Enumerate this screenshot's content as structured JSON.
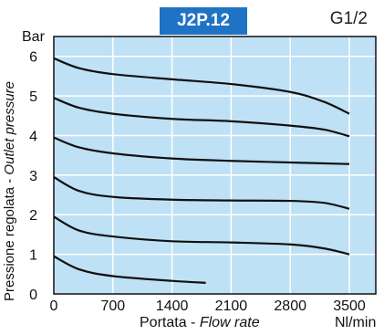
{
  "header": {
    "model_badge": "J2P.12",
    "port_size": "G1/2"
  },
  "colors": {
    "plot_background": "#bfe1f5",
    "gridline": "#ffffff",
    "curve": "#111111",
    "badge": "#1e73c4"
  },
  "chart_data": {
    "type": "line",
    "title": "J2P.12",
    "subtitle": "G1/2",
    "xlabel_main": "Portata - ",
    "xlabel_italic": "Flow rate",
    "xunit": "Nl/min",
    "ylabel_main": "Pressione regolata - ",
    "ylabel_italic": "Outlet pressure",
    "yunit": "Bar",
    "xlim": [
      0,
      3500
    ],
    "ylim": [
      0,
      6.5
    ],
    "x_ticks": [
      0,
      700,
      1400,
      2100,
      2800,
      3500
    ],
    "y_ticks": [
      0,
      1,
      2,
      3,
      4,
      5,
      6
    ],
    "x_tick_labels": [
      "0",
      "700",
      "1400",
      "2100",
      "2800",
      "3500"
    ],
    "y_tick_labels": [
      "0",
      "1",
      "2",
      "3",
      "4",
      "5",
      "6"
    ],
    "grid": true,
    "series": [
      {
        "x": [
          0,
          300,
          700,
          1400,
          1800
        ],
        "values": [
          0.95,
          0.62,
          0.45,
          0.33,
          0.28
        ]
      },
      {
        "x": [
          0,
          300,
          700,
          1400,
          2100,
          2800,
          3200,
          3500
        ],
        "values": [
          1.95,
          1.6,
          1.45,
          1.33,
          1.3,
          1.25,
          1.15,
          1.0
        ]
      },
      {
        "x": [
          0,
          300,
          700,
          1400,
          2100,
          2800,
          3200,
          3500
        ],
        "values": [
          2.95,
          2.6,
          2.45,
          2.38,
          2.36,
          2.35,
          2.3,
          2.15
        ]
      },
      {
        "x": [
          0,
          300,
          700,
          1400,
          2100,
          2800,
          3500
        ],
        "values": [
          3.95,
          3.7,
          3.55,
          3.42,
          3.36,
          3.32,
          3.28
        ]
      },
      {
        "x": [
          0,
          300,
          700,
          1400,
          2100,
          2800,
          3200,
          3500
        ],
        "values": [
          4.95,
          4.7,
          4.55,
          4.42,
          4.36,
          4.25,
          4.15,
          3.98
        ]
      },
      {
        "x": [
          0,
          300,
          700,
          1400,
          2100,
          2800,
          3200,
          3500
        ],
        "values": [
          5.95,
          5.7,
          5.55,
          5.42,
          5.3,
          5.1,
          4.85,
          4.55
        ]
      }
    ]
  }
}
